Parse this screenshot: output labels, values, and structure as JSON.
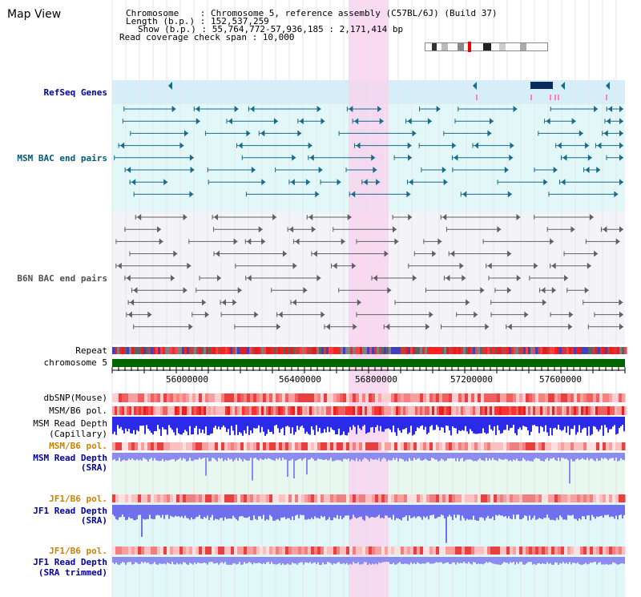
{
  "title": "Map View",
  "info": {
    "chromosome": "Chromosome    : Chromosome 5, reference assembly (C57BL/6J) (Build 37)",
    "length": "Length (b.p.) : 152,537,259",
    "show": "Show (b.p.) : 55,764,772-57,936,185 : 2,171,414 bp",
    "coverage": "Read coverage check span : 10,000"
  },
  "tracks": {
    "refseq": "RefSeq Genes",
    "msm_bac": "MSM BAC end pairs",
    "b6n_bac": "B6N BAC end pairs",
    "repeat": "Repeat",
    "chromosome": "chromosome 5",
    "dbsnp": "dbSNP(Mouse)",
    "msm_pol": "MSM/B6 pol.",
    "msm_depth_cap_1": "MSM Read Depth",
    "msm_depth_cap_2": "(Capillary)",
    "msm_pol_2": "MSM/B6 pol.",
    "msm_depth_sra_1": "MSM Read Depth",
    "msm_depth_sra_2": "(SRA)",
    "jf1_pol": "JF1/B6 pol.",
    "jf1_depth_1": "JF1 Read Depth",
    "jf1_depth_2": "(SRA)",
    "jf1_pol_2": "JF1/B6 pol.",
    "jf1_trim_1": "JF1 Read Depth",
    "jf1_trim_2": "(SRA trimmed)"
  },
  "axis": {
    "ticks": [
      "56000000",
      "56400000",
      "56800000",
      "57200000",
      "57600000"
    ]
  },
  "colors": {
    "highlight": "#f8d8f0",
    "refseq_bg": "#d8f0f8",
    "bac_bg": "#e0f8f8",
    "teal": "#1a6a8a",
    "gray": "#606060",
    "chrom": "#006400",
    "depth_blue": "#2020e0",
    "depth_light": "#8080f0"
  }
}
